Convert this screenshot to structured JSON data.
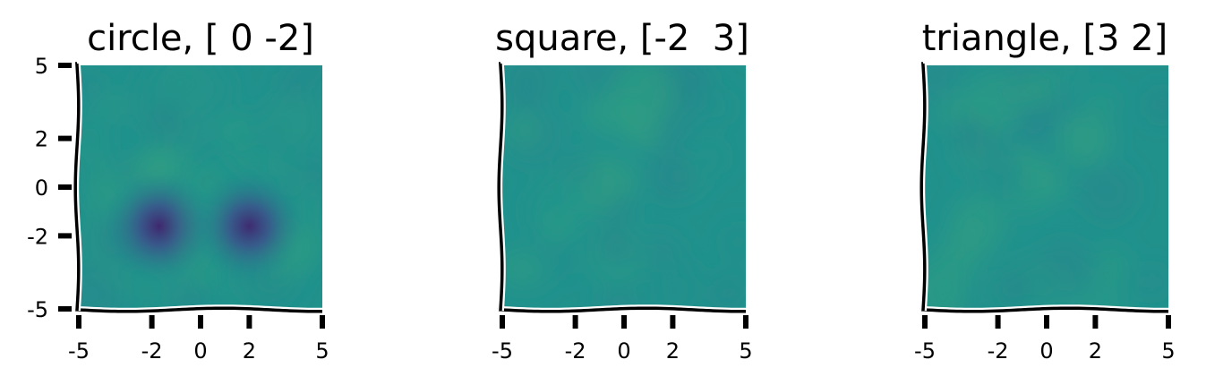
{
  "chart_data": [
    {
      "type": "heatmap",
      "title": "circle, [ 0 -2]",
      "xlim": [
        -5,
        5
      ],
      "ylim": [
        -5,
        5
      ],
      "x_ticks": [
        -5,
        -2,
        0,
        2,
        5
      ],
      "y_ticks": [
        -5,
        -2,
        0,
        2,
        5
      ],
      "x_tick_labels": [
        "-5",
        "-2",
        "0",
        "2",
        "5"
      ],
      "y_tick_labels": [
        "-5",
        "-2",
        "0",
        "2",
        "5"
      ],
      "colormap": "viridis",
      "features": [
        {
          "x": -1.7,
          "y": -1.6,
          "level": 0.12,
          "spread": 0.9
        },
        {
          "x": 2.0,
          "y": -1.6,
          "level": 0.13,
          "spread": 0.9
        }
      ],
      "background_level": 0.5
    },
    {
      "type": "heatmap",
      "title": "square, [-2  3]",
      "xlim": [
        -5,
        5
      ],
      "ylim": [
        -5,
        5
      ],
      "x_ticks": [
        -5,
        -2,
        0,
        2,
        5
      ],
      "x_tick_labels": [
        "-5",
        "-2",
        "0",
        "2",
        "5"
      ],
      "colormap": "viridis",
      "features": [],
      "background_level": 0.5
    },
    {
      "type": "heatmap",
      "title": "triangle, [3 2]",
      "xlim": [
        -5,
        5
      ],
      "ylim": [
        -5,
        5
      ],
      "x_ticks": [
        -5,
        -2,
        0,
        2,
        5
      ],
      "x_tick_labels": [
        "-5",
        "-2",
        "0",
        "2",
        "5"
      ],
      "colormap": "viridis",
      "features": [],
      "background_level": 0.5
    }
  ]
}
